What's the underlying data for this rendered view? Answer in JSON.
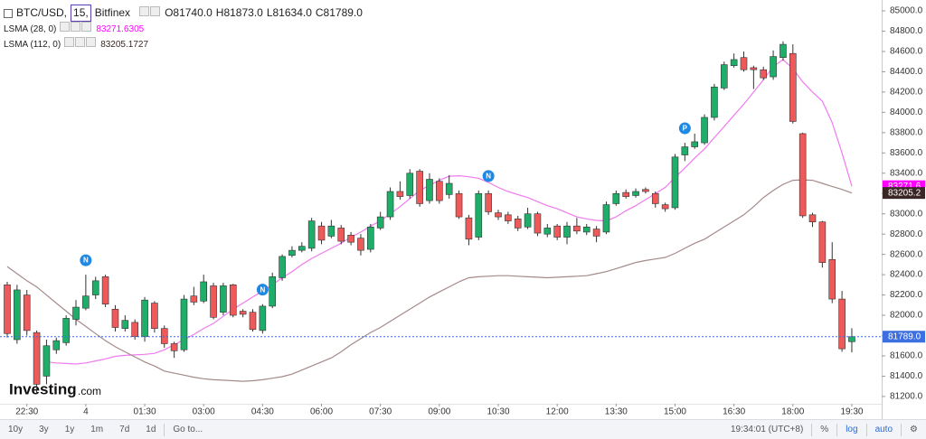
{
  "header": {
    "symbol": "BTC/USD,",
    "interval": "15,",
    "exchange": "Bitfinex",
    "ohlc": [
      "O81740.0",
      "H81873.0",
      "L81634.0",
      "C81789.0"
    ]
  },
  "logo": {
    "brand": "Investing",
    "suffix": ".com"
  },
  "toolbar": {
    "ranges": [
      "10y",
      "3y",
      "1y",
      "1m",
      "7d",
      "1d",
      "Go to..."
    ],
    "clock": "19:34:01 (UTC+8)",
    "options": [
      "%",
      "log",
      "auto"
    ]
  },
  "chart_data": {
    "type": "candlestick",
    "categories": [
      null,
      null,
      "22:30",
      null,
      null,
      null,
      null,
      null,
      "4",
      null,
      null,
      null,
      null,
      null,
      "01:30",
      null,
      null,
      null,
      null,
      null,
      "03:00",
      null,
      null,
      null,
      null,
      null,
      "04:30",
      null,
      null,
      null,
      null,
      null,
      "06:00",
      null,
      null,
      null,
      null,
      null,
      "07:30",
      null,
      null,
      null,
      null,
      null,
      "09:00",
      null,
      null,
      null,
      null,
      null,
      "10:30",
      null,
      null,
      null,
      null,
      null,
      "12:00",
      null,
      null,
      null,
      null,
      null,
      "13:30",
      null,
      null,
      null,
      null,
      null,
      "15:00",
      null,
      null,
      null,
      null,
      null,
      "16:30",
      null,
      null,
      null,
      null,
      null,
      "18:00",
      null,
      null,
      null,
      null,
      null,
      "19:30"
    ],
    "open": [
      82300,
      81760,
      82200,
      81830,
      81400,
      81660,
      81730,
      81960,
      82070,
      82200,
      82380,
      82060,
      81870,
      81930,
      81790,
      82120,
      81870,
      81720,
      81660,
      82190,
      82140,
      82290,
      82030,
      82300,
      82040,
      82030,
      81850,
      82090,
      82370,
      82590,
      82640,
      82660,
      82880,
      82780,
      82860,
      82790,
      82760,
      82650,
      82860,
      82970,
      83220,
      83180,
      83420,
      83130,
      83320,
      83190,
      83200,
      82960,
      82770,
      83200,
      83010,
      82990,
      82950,
      82870,
      83000,
      82800,
      82880,
      82770,
      82880,
      82820,
      82850,
      82820,
      83100,
      83210,
      83180,
      83240,
      83200,
      83090,
      83060,
      83580,
      83660,
      83700,
      83950,
      84240,
      84460,
      84540,
      84440,
      84420,
      84350,
      84540,
      84580,
      83790,
      82990,
      82920,
      82550,
      82160,
      81740
    ],
    "high": [
      82330,
      82300,
      82250,
      81850,
      81760,
      81780,
      82000,
      82150,
      82400,
      82380,
      82400,
      82100,
      82000,
      81960,
      82180,
      82140,
      81900,
      81740,
      82200,
      82280,
      82400,
      82320,
      82320,
      82310,
      82060,
      82060,
      82110,
      82420,
      82600,
      82680,
      82720,
      82960,
      82920,
      82940,
      82890,
      82820,
      82800,
      82900,
      83020,
      83260,
      83320,
      83440,
      83440,
      83400,
      83350,
      83380,
      83230,
      82990,
      83230,
      83230,
      83040,
      83020,
      82980,
      83060,
      83020,
      82900,
      82900,
      82920,
      82960,
      82900,
      82880,
      83120,
      83230,
      83240,
      83250,
      83260,
      83220,
      83110,
      83590,
      83700,
      83790,
      83980,
      84280,
      84500,
      84580,
      84600,
      84460,
      84450,
      84610,
      84700,
      84670,
      83800,
      83010,
      82930,
      82720,
      82240,
      81873
    ],
    "low": [
      81780,
      81720,
      81800,
      81230,
      81320,
      81620,
      81700,
      81900,
      82050,
      82160,
      82080,
      81840,
      81840,
      81760,
      81740,
      81830,
      81680,
      81580,
      81640,
      82100,
      82120,
      81960,
      82000,
      81980,
      81980,
      81840,
      81820,
      82070,
      82340,
      82570,
      82620,
      82630,
      82700,
      82760,
      82700,
      82690,
      82590,
      82620,
      82840,
      82940,
      83140,
      83150,
      83070,
      83100,
      83100,
      83150,
      82950,
      82690,
      82740,
      82990,
      82940,
      82900,
      82830,
      82850,
      82780,
      82770,
      82740,
      82700,
      82800,
      82790,
      82720,
      82800,
      83080,
      83150,
      83160,
      83200,
      83060,
      83020,
      83040,
      83520,
      83640,
      83680,
      83920,
      84220,
      84440,
      84400,
      84230,
      84320,
      84320,
      84510,
      83890,
      82960,
      82870,
      82470,
      82120,
      81640,
      81634
    ],
    "close": [
      81820,
      82250,
      81850,
      81320,
      81700,
      81750,
      81970,
      82080,
      82190,
      82340,
      82110,
      81880,
      81950,
      81790,
      82150,
      81870,
      81720,
      81650,
      82160,
      82130,
      82330,
      81980,
      82290,
      82000,
      82010,
      81860,
      82090,
      82380,
      82580,
      82640,
      82680,
      82930,
      82740,
      82880,
      82730,
      82720,
      82640,
      82870,
      82970,
      83220,
      83170,
      83400,
      83100,
      83340,
      83130,
      83300,
      82970,
      82750,
      83200,
      83020,
      82970,
      82930,
      82860,
      83000,
      82810,
      82860,
      82770,
      82880,
      82830,
      82870,
      82780,
      83090,
      83200,
      83170,
      83220,
      83220,
      83100,
      83050,
      83560,
      83660,
      83710,
      83950,
      84250,
      84470,
      84520,
      84420,
      84420,
      84340,
      84550,
      84670,
      83910,
      82980,
      82920,
      82520,
      82160,
      81670,
      81789
    ],
    "up_color": "#1fae6a",
    "down_color": "#ee5a5a",
    "wick_color": "#333333",
    "last_price_label": "81789.0",
    "last_price_color": "#3d6fe0",
    "series": [
      {
        "name": "LSMA (28, 0)",
        "color": "#f07af0",
        "tag_color": "#ff00ff",
        "value_label": "83271.6305",
        "axis_label": "83271.6",
        "values": [
          null,
          null,
          null,
          null,
          81540,
          81530,
          81525,
          81520,
          81530,
          81550,
          81570,
          81595,
          81605,
          81610,
          81615,
          81625,
          81660,
          81710,
          81760,
          81810,
          81870,
          81920,
          81990,
          82060,
          82120,
          82180,
          82240,
          82300,
          82370,
          82430,
          82500,
          82560,
          82610,
          82660,
          82710,
          82770,
          82820,
          82880,
          82930,
          83000,
          83070,
          83150,
          83230,
          83280,
          83330,
          83370,
          83375,
          83365,
          83350,
          83310,
          83260,
          83220,
          83190,
          83160,
          83120,
          83080,
          83050,
          83010,
          82970,
          82950,
          82935,
          82930,
          82970,
          83030,
          83080,
          83140,
          83200,
          83260,
          83360,
          83450,
          83550,
          83640,
          83750,
          83860,
          83970,
          84080,
          84200,
          84320,
          84450,
          84520,
          84430,
          84300,
          84200,
          84110,
          83900,
          83600,
          83271.6305
        ]
      },
      {
        "name": "LSMA (112, 0)",
        "color": "#a58a8a",
        "tag_color": "#3b2626",
        "value_label": "83205.1727",
        "axis_label": "83205.2",
        "values": [
          82480,
          82410,
          82340,
          82280,
          82200,
          82120,
          82040,
          81960,
          81890,
          81820,
          81750,
          81690,
          81640,
          81590,
          81540,
          81500,
          81450,
          81430,
          81410,
          81390,
          81375,
          81365,
          81360,
          81355,
          81350,
          81355,
          81365,
          81380,
          81395,
          81420,
          81460,
          81500,
          81540,
          81580,
          81640,
          81710,
          81770,
          81830,
          81880,
          81940,
          82000,
          82060,
          82120,
          82180,
          82230,
          82280,
          82330,
          82370,
          82380,
          82385,
          82390,
          82390,
          82385,
          82380,
          82375,
          82370,
          82375,
          82380,
          82385,
          82390,
          82410,
          82430,
          82460,
          82490,
          82520,
          82540,
          82555,
          82570,
          82610,
          82660,
          82710,
          82750,
          82810,
          82870,
          82930,
          82990,
          83070,
          83160,
          83230,
          83290,
          83330,
          83335,
          83330,
          83300,
          83270,
          83240,
          83205.1727
        ]
      }
    ],
    "event_markers": [
      {
        "category_index": 8,
        "label": "N"
      },
      {
        "category_index": 26,
        "label": "N"
      },
      {
        "category_index": 49,
        "label": "N"
      },
      {
        "category_index": 69,
        "label": "P"
      }
    ],
    "ylim": [
      81128,
      85107
    ],
    "yticks": [
      {
        "value": 81200,
        "label": "81200.0"
      },
      {
        "value": 81400,
        "label": "81400.0"
      },
      {
        "value": 81600,
        "label": "81600.0"
      },
      {
        "value": 81800,
        "label": "81800.0"
      },
      {
        "value": 82000,
        "label": "82000.0"
      },
      {
        "value": 82200,
        "label": "82200.0"
      },
      {
        "value": 82400,
        "label": "82400.0"
      },
      {
        "value": 82600,
        "label": "82600.0"
      },
      {
        "value": 82800,
        "label": "82800.0"
      },
      {
        "value": 83000,
        "label": "83000.0"
      },
      {
        "value": 83200,
        "label": "83200.0"
      },
      {
        "value": 83400,
        "label": "83400.0"
      },
      {
        "value": 83600,
        "label": "83600.0"
      },
      {
        "value": 83800,
        "label": "83800.0"
      },
      {
        "value": 84000,
        "label": "84000.0"
      },
      {
        "value": 84200,
        "label": "84200.0"
      },
      {
        "value": 84400,
        "label": "84400.0"
      },
      {
        "value": 84600,
        "label": "84600.0"
      },
      {
        "value": 84800,
        "label": "84800.0"
      },
      {
        "value": 85000,
        "label": "85000.0"
      }
    ],
    "grid": false
  }
}
